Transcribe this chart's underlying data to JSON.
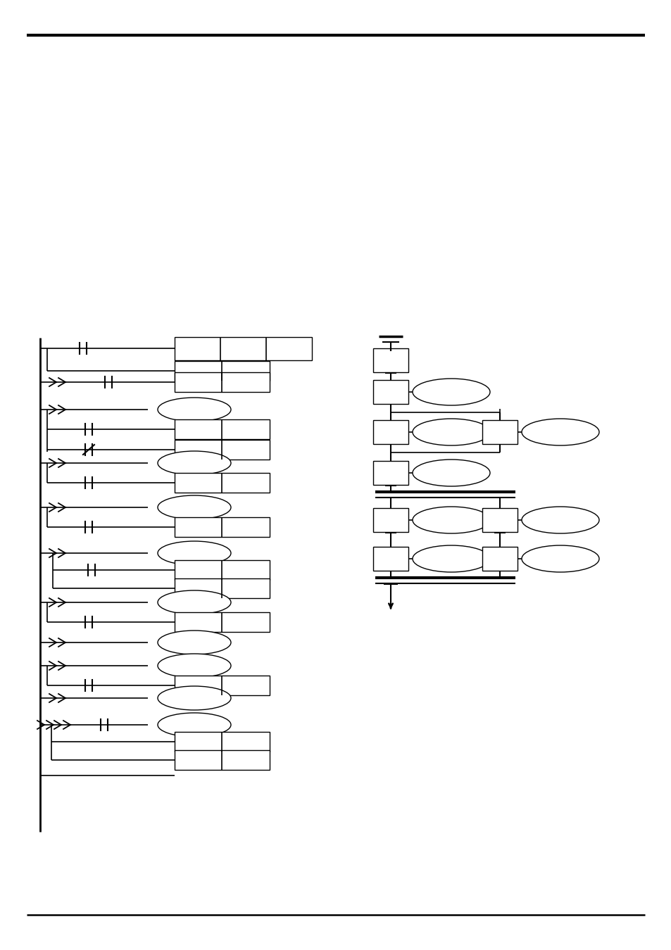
{
  "bg_color": "#ffffff",
  "line_color": "#000000",
  "fig_width": 9.54,
  "fig_height": 13.5
}
